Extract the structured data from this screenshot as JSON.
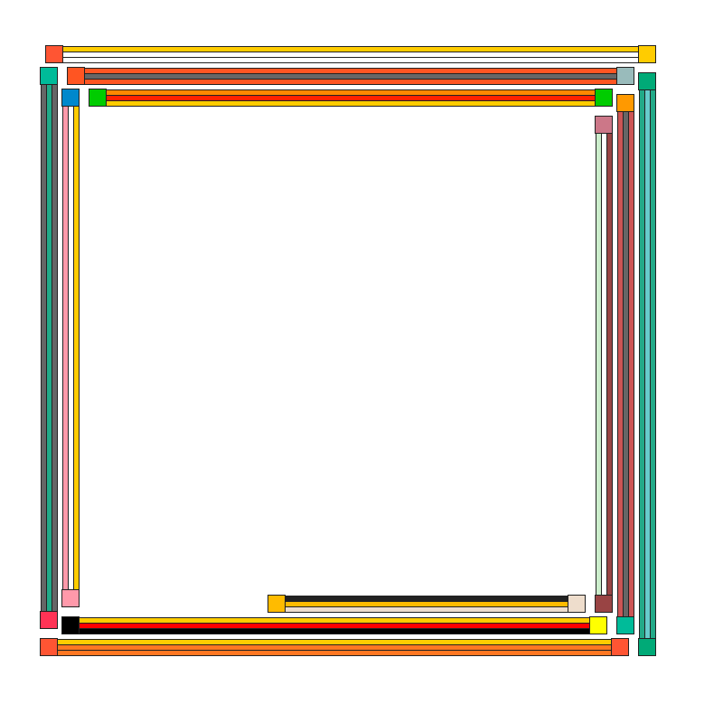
{
  "bars": [
    {
      "name": "top-bar-1",
      "orientation": "h",
      "stripes": [
        "#FFCC00",
        "#FFFFFF",
        "#FFFFFF"
      ],
      "caps": [
        "#FF5533",
        "#FFCC00"
      ]
    },
    {
      "name": "top-bar-2",
      "orientation": "h",
      "stripes": [
        "#FF5522",
        "#666666",
        "#FF5522"
      ],
      "caps": [
        "#FF5522",
        "#99BBBB"
      ]
    },
    {
      "name": "top-bar-3",
      "orientation": "h",
      "stripes": [
        "#FF8800",
        "#FF2200",
        "#FFCC00"
      ],
      "caps": [
        "#00CC00",
        "#00CC00"
      ]
    },
    {
      "name": "left-bar-1",
      "orientation": "v",
      "stripes": [
        "#666666",
        "#22AA88",
        "#666666"
      ],
      "caps": [
        "#00BB99",
        "#FF3355"
      ]
    },
    {
      "name": "left-bar-2",
      "orientation": "v",
      "stripes": [
        "#FF99AA",
        "#FFFFFF",
        "#FFCC00"
      ],
      "caps": [
        "#0088CC",
        "#FF99AA"
      ]
    },
    {
      "name": "right-bar-1",
      "orientation": "v",
      "stripes": [
        "#CCEECC",
        "#FFFFFF",
        "#994444"
      ],
      "caps": [
        "#CC7788",
        "#994444"
      ]
    },
    {
      "name": "right-bar-2",
      "orientation": "v",
      "stripes": [
        "#CC5555",
        "#666666",
        "#CC5555"
      ],
      "caps": [
        "#FF9900",
        "#00BB99"
      ]
    },
    {
      "name": "right-bar-3",
      "orientation": "v",
      "stripes": [
        "#22AA88",
        "#66CCCC",
        "#22AA88"
      ],
      "caps": [
        "#00AA77",
        "#00AA77"
      ]
    },
    {
      "name": "bottom-bar-short",
      "orientation": "h",
      "stripes": [
        "#222222",
        "#FFBB00",
        "#EEDDCC"
      ],
      "caps": [
        "#FFBB00",
        "#EEDDCC"
      ]
    },
    {
      "name": "bottom-bar-1",
      "orientation": "h",
      "stripes": [
        "#FFCC00",
        "#FF0000",
        "#000000"
      ],
      "caps": [
        "#000000",
        "#FFFF00"
      ]
    },
    {
      "name": "bottom-bar-2",
      "orientation": "h",
      "stripes": [
        "#FFCC00",
        "#FF7722",
        "#FF7722"
      ],
      "caps": [
        "#FF5533",
        "#FF5533"
      ]
    }
  ]
}
